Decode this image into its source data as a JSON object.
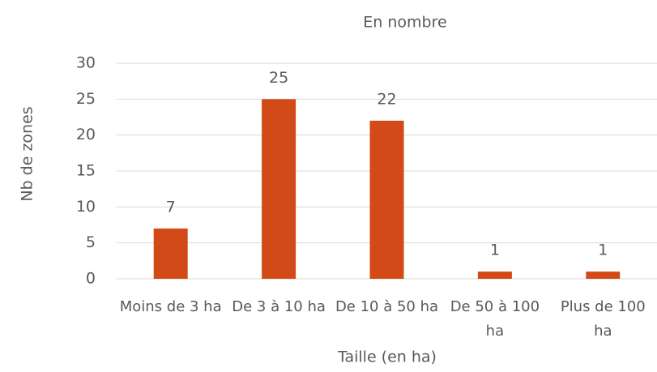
{
  "chart_data": {
    "type": "bar",
    "title": "En nombre",
    "categories": [
      "Moins de 3 ha",
      "De 3 à 10 ha",
      "De 10 à 50 ha",
      "De 50 à 100 ha",
      "Plus de 100 ha"
    ],
    "values": [
      7,
      25,
      22,
      1,
      1
    ],
    "color": "#d24a17",
    "xlabel": "Taille (en ha)",
    "ylabel": "Nb de zones",
    "ylim": [
      0,
      30
    ],
    "yticks": [
      0,
      5,
      10,
      15,
      20,
      25,
      30
    ],
    "grid": true
  }
}
